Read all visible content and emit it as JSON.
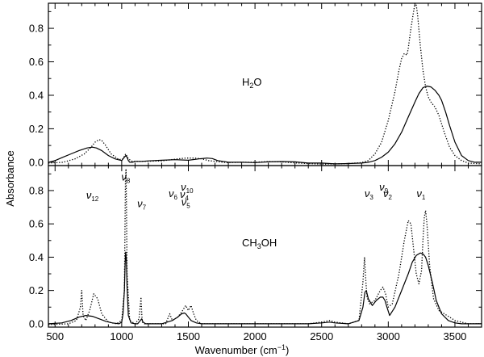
{
  "chart_data": [
    {
      "type": "line",
      "panel": "top",
      "label": "H2O",
      "label_main": "H",
      "label_sub": "2",
      "label_tail": "O",
      "xlim": [
        450,
        3700
      ],
      "ylim": [
        -0.02,
        0.95
      ],
      "yticks": [
        0.0,
        0.2,
        0.4,
        0.6,
        0.8
      ],
      "ytick_labels": [
        "0.0",
        "0.2",
        "0.4",
        "0.6",
        "0.8"
      ],
      "series": [
        {
          "style": "solid",
          "x": [
            450,
            500,
            560,
            620,
            680,
            740,
            780,
            810,
            850,
            900,
            950,
            1000,
            1020,
            1030,
            1040,
            1050,
            1060,
            1080,
            1100,
            1150,
            1200,
            1300,
            1400,
            1500,
            1580,
            1640,
            1680,
            1720,
            1760,
            1800,
            1900,
            2000,
            2100,
            2200,
            2300,
            2400,
            2500,
            2600,
            2700,
            2800,
            2850,
            2900,
            2950,
            3000,
            3050,
            3100,
            3150,
            3200,
            3230,
            3260,
            3290,
            3320,
            3350,
            3380,
            3400,
            3430,
            3460,
            3500,
            3550,
            3600,
            3650,
            3700
          ],
          "y": [
            0.0,
            0.01,
            0.03,
            0.05,
            0.07,
            0.085,
            0.09,
            0.085,
            0.07,
            0.04,
            0.02,
            0.01,
            0.03,
            0.04,
            0.03,
            0.01,
            0.0,
            0.0,
            0.005,
            0.005,
            0.008,
            0.012,
            0.015,
            0.012,
            0.02,
            0.025,
            0.022,
            0.01,
            0.005,
            0.0,
            0.0,
            -0.002,
            0.002,
            0.004,
            0.002,
            -0.005,
            -0.005,
            -0.01,
            -0.008,
            -0.005,
            0.0,
            0.01,
            0.03,
            0.06,
            0.11,
            0.18,
            0.27,
            0.36,
            0.41,
            0.445,
            0.455,
            0.45,
            0.43,
            0.4,
            0.37,
            0.3,
            0.22,
            0.12,
            0.04,
            0.01,
            0.0,
            0.0
          ]
        },
        {
          "style": "dotted",
          "x": [
            450,
            560,
            650,
            720,
            770,
            800,
            830,
            850,
            880,
            920,
            980,
            1010,
            1030,
            1050,
            1080,
            1150,
            1300,
            1420,
            1480,
            1550,
            1600,
            1650,
            1700,
            1760,
            1800,
            1900,
            2000,
            2100,
            2200,
            2300,
            2400,
            2500,
            2600,
            2700,
            2800,
            2850,
            2900,
            2950,
            3000,
            3050,
            3080,
            3100,
            3120,
            3140,
            3150,
            3170,
            3190,
            3200,
            3210,
            3220,
            3240,
            3260,
            3280,
            3300,
            3320,
            3350,
            3380,
            3420,
            3460,
            3500,
            3550,
            3600,
            3700
          ],
          "y": [
            -0.005,
            0.0,
            0.02,
            0.05,
            0.09,
            0.12,
            0.135,
            0.13,
            0.1,
            0.05,
            0.015,
            0.02,
            0.05,
            0.02,
            0.005,
            0.005,
            0.008,
            0.02,
            0.025,
            0.025,
            0.02,
            0.01,
            0.005,
            0.0,
            -0.002,
            0.0,
            0.0,
            0.004,
            0.002,
            -0.004,
            -0.008,
            -0.012,
            -0.01,
            -0.008,
            -0.002,
            0.01,
            0.05,
            0.12,
            0.25,
            0.42,
            0.55,
            0.62,
            0.65,
            0.64,
            0.68,
            0.8,
            0.9,
            0.95,
            0.94,
            0.88,
            0.7,
            0.55,
            0.45,
            0.39,
            0.36,
            0.33,
            0.28,
            0.18,
            0.09,
            0.04,
            0.01,
            -0.005,
            -0.01
          ]
        }
      ]
    },
    {
      "type": "line",
      "panel": "bottom",
      "label": "CH3OH",
      "label_main": "CH",
      "label_sub": "3",
      "label_tail": "OH",
      "xlim": [
        450,
        3700
      ],
      "ylim": [
        -0.02,
        0.95
      ],
      "yticks": [
        0.0,
        0.2,
        0.4,
        0.6,
        0.8
      ],
      "ytick_labels": [
        "0.0",
        "0.2",
        "0.4",
        "0.6",
        "0.8"
      ],
      "xticks": [
        500,
        1000,
        1500,
        2000,
        2500,
        3000,
        3500
      ],
      "xtick_labels": [
        "500",
        "1000",
        "1500",
        "2000",
        "2500",
        "3000",
        "3500"
      ],
      "xlabel": "Wavenumber (cm",
      "xlabel_sup": "−1",
      "xlabel_tail": ")",
      "ylabel": "Absorbance",
      "series": [
        {
          "style": "solid",
          "x": [
            450,
            550,
            620,
            680,
            730,
            780,
            830,
            880,
            930,
            980,
            1000,
            1010,
            1020,
            1025,
            1030,
            1035,
            1040,
            1050,
            1070,
            1100,
            1120,
            1140,
            1150,
            1160,
            1180,
            1200,
            1300,
            1380,
            1420,
            1450,
            1470,
            1480,
            1500,
            1520,
            1560,
            1600,
            1800,
            2000,
            2200,
            2400,
            2500,
            2560,
            2600,
            2700,
            2780,
            2810,
            2825,
            2835,
            2850,
            2880,
            2910,
            2940,
            2960,
            2975,
            2990,
            3010,
            3050,
            3100,
            3150,
            3180,
            3210,
            3240,
            3260,
            3280,
            3300,
            3330,
            3360,
            3400,
            3450,
            3500,
            3550,
            3600,
            3700
          ],
          "y": [
            0.0,
            0.005,
            0.02,
            0.04,
            0.05,
            0.045,
            0.03,
            0.015,
            0.005,
            0.0,
            0.01,
            0.06,
            0.2,
            0.34,
            0.43,
            0.38,
            0.22,
            0.05,
            0.005,
            0.0,
            0.0,
            0.02,
            0.03,
            0.01,
            0.0,
            0.0,
            0.0,
            0.02,
            0.04,
            0.06,
            0.065,
            0.06,
            0.04,
            0.02,
            0.005,
            0.0,
            0.0,
            0.0,
            0.0,
            0.0,
            0.005,
            0.01,
            0.005,
            0.0,
            0.02,
            0.1,
            0.19,
            0.2,
            0.15,
            0.11,
            0.14,
            0.16,
            0.16,
            0.14,
            0.1,
            0.05,
            0.1,
            0.2,
            0.3,
            0.37,
            0.41,
            0.425,
            0.42,
            0.4,
            0.35,
            0.25,
            0.14,
            0.06,
            0.02,
            0.005,
            0.0,
            0.0,
            0.0
          ]
        },
        {
          "style": "dotted",
          "x": [
            450,
            600,
            660,
            690,
            700,
            710,
            730,
            760,
            790,
            820,
            850,
            900,
            960,
            1000,
            1020,
            1025,
            1028,
            1032,
            1036,
            1040,
            1060,
            1100,
            1130,
            1145,
            1150,
            1155,
            1170,
            1250,
            1330,
            1360,
            1380,
            1420,
            1450,
            1480,
            1500,
            1520,
            1540,
            1560,
            1600,
            1800,
            2000,
            2200,
            2400,
            2500,
            2560,
            2600,
            2700,
            2780,
            2810,
            2822,
            2830,
            2840,
            2860,
            2900,
            2940,
            2960,
            2980,
            3000,
            3030,
            3080,
            3120,
            3150,
            3170,
            3190,
            3210,
            3230,
            3250,
            3260,
            3270,
            3280,
            3290,
            3310,
            3340,
            3380,
            3420,
            3460,
            3500,
            3600,
            3700
          ],
          "y": [
            -0.005,
            0.0,
            0.02,
            0.1,
            0.2,
            0.05,
            0.02,
            0.08,
            0.18,
            0.15,
            0.06,
            0.01,
            0.0,
            0.02,
            0.2,
            0.6,
            0.85,
            0.93,
            0.7,
            0.3,
            0.02,
            0.0,
            0.03,
            0.16,
            0.06,
            0.01,
            0.0,
            0.0,
            0.0,
            0.06,
            0.02,
            0.04,
            0.07,
            0.11,
            0.08,
            0.11,
            0.06,
            0.02,
            0.0,
            0.0,
            0.0,
            0.0,
            0.0,
            0.01,
            0.02,
            0.01,
            0.0,
            0.02,
            0.25,
            0.4,
            0.28,
            0.16,
            0.12,
            0.14,
            0.2,
            0.22,
            0.18,
            0.1,
            0.12,
            0.3,
            0.5,
            0.62,
            0.6,
            0.45,
            0.3,
            0.24,
            0.32,
            0.5,
            0.64,
            0.68,
            0.6,
            0.35,
            0.15,
            0.08,
            0.06,
            0.04,
            0.02,
            0.0,
            0.0
          ]
        }
      ],
      "annotations": [
        {
          "sym": "ν",
          "sub": "12",
          "x": 780,
          "y": 0.75
        },
        {
          "sym": "ν",
          "sub": "8",
          "x": 1030,
          "y": 0.86
        },
        {
          "sym": "ν",
          "sub": "7",
          "x": 1150,
          "y": 0.7
        },
        {
          "sym": "ν",
          "sub": "6",
          "x": 1385,
          "y": 0.76
        },
        {
          "sym": "ν",
          "sub": "10",
          "x": 1490,
          "y": 0.8
        },
        {
          "sym": "ν",
          "sub": "4",
          "x": 1470,
          "y": 0.755
        },
        {
          "sym": "ν",
          "sub": "5",
          "x": 1480,
          "y": 0.71
        },
        {
          "sym": "ν",
          "sub": "9",
          "x": 2965,
          "y": 0.8
        },
        {
          "sym": "ν",
          "sub": "3",
          "x": 2855,
          "y": 0.76
        },
        {
          "sym": "ν",
          "sub": "2",
          "x": 2995,
          "y": 0.76
        },
        {
          "sym": "ν",
          "sub": "1",
          "x": 3245,
          "y": 0.76
        }
      ]
    }
  ]
}
